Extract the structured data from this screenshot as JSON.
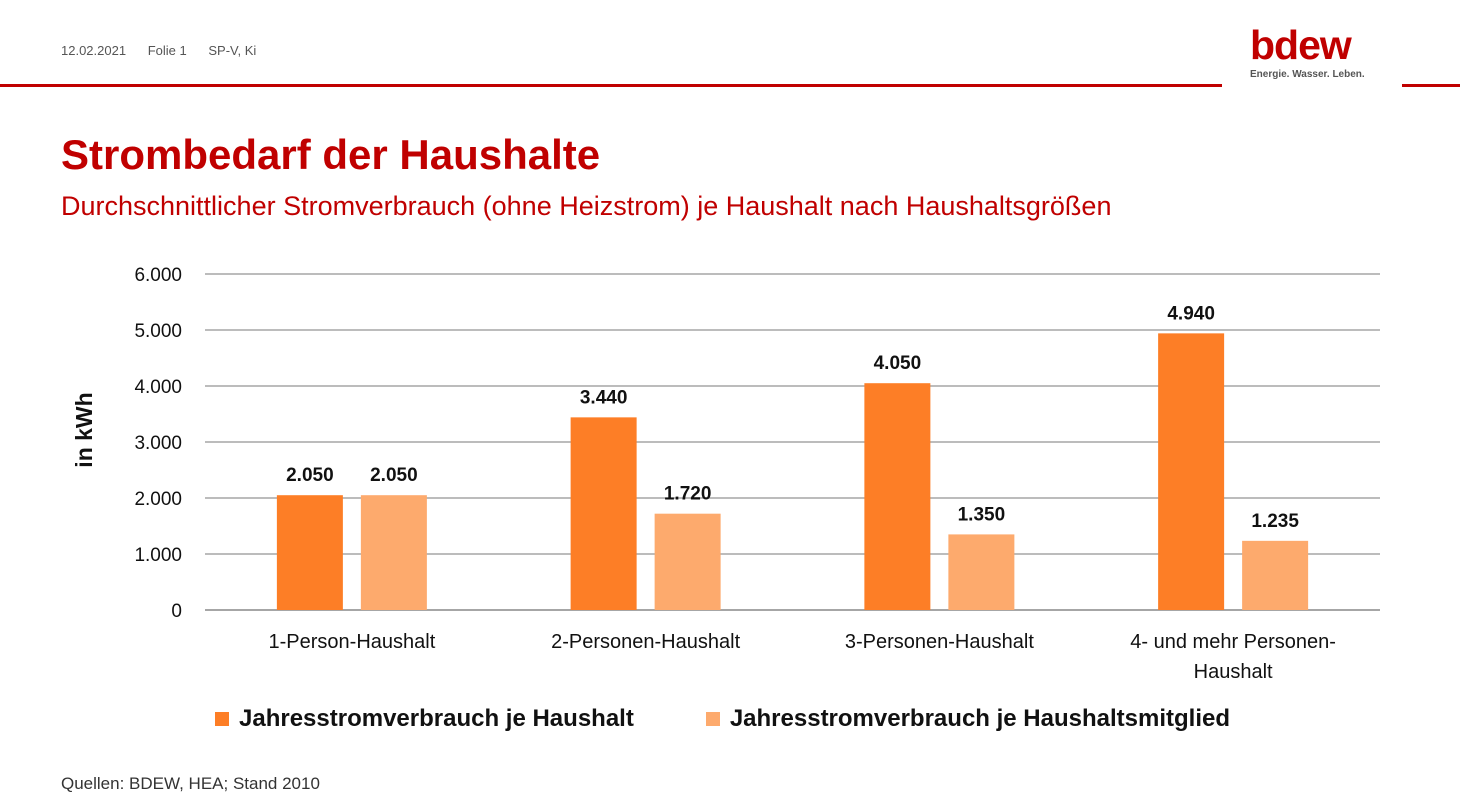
{
  "header": {
    "date": "12.02.2021",
    "slide": "Folie 1",
    "author": "SP-V, Ki"
  },
  "logo": {
    "word": "bdew",
    "tagline": "Energie. Wasser. Leben."
  },
  "title": "Strombedarf der Haushalte",
  "subtitle": "Durchschnittlicher Stromverbrauch (ohne Heizstrom) je Haushalt nach Haushaltsgrößen",
  "source": "Quellen: BDEW, HEA; Stand 2010",
  "colors": {
    "accent": "#c00000",
    "series1": "#fd7e26",
    "series2": "#fdaa6d",
    "grid": "#a6a6a6"
  },
  "chart_data": {
    "type": "bar",
    "ylabel": "in kWh",
    "ylim": [
      0,
      6000
    ],
    "yticks": [
      "0",
      "1.000",
      "2.000",
      "3.000",
      "4.000",
      "5.000",
      "6.000"
    ],
    "categories": [
      [
        "1-Person-Haushalt"
      ],
      [
        "2-Personen-Haushalt"
      ],
      [
        "3-Personen-Haushalt"
      ],
      [
        "4- und mehr Personen-",
        "Haushalt"
      ]
    ],
    "series": [
      {
        "name": "Jahresstromverbrauch je Haushalt",
        "values": [
          2050,
          3440,
          4050,
          4940
        ],
        "labels": [
          "2.050",
          "3.440",
          "4.050",
          "4.940"
        ]
      },
      {
        "name": "Jahresstromverbrauch je Haushaltsmitglied",
        "values": [
          2050,
          1720,
          1350,
          1235
        ],
        "labels": [
          "2.050",
          "1.720",
          "1.350",
          "1.235"
        ]
      }
    ],
    "grid": true,
    "legend": "bottom"
  }
}
